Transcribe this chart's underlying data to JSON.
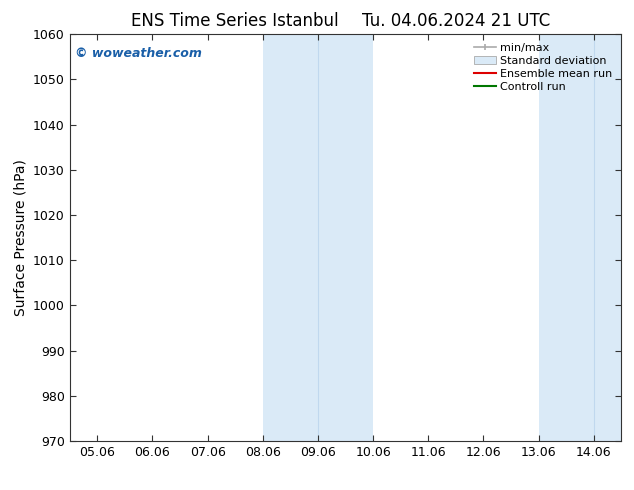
{
  "title_left": "ENS Time Series Istanbul",
  "title_right": "Tu. 04.06.2024 21 UTC",
  "ylabel": "Surface Pressure (hPa)",
  "ylim": [
    970,
    1060
  ],
  "yticks": [
    970,
    980,
    990,
    1000,
    1010,
    1020,
    1030,
    1040,
    1050,
    1060
  ],
  "xlabels": [
    "05.06",
    "06.06",
    "07.06",
    "08.06",
    "09.06",
    "10.06",
    "11.06",
    "12.06",
    "13.06",
    "14.06"
  ],
  "xvalues": [
    0,
    1,
    2,
    3,
    4,
    5,
    6,
    7,
    8,
    9
  ],
  "xlim": [
    -0.5,
    9.5
  ],
  "shaded_bands": [
    {
      "x_start": 3.0,
      "x_end": 5.0,
      "color": "#daeaf7"
    },
    {
      "x_start": 8.0,
      "x_end": 9.5,
      "color": "#daeaf7"
    }
  ],
  "band_inner_lines": [
    {
      "x": 4.0,
      "color": "#c0d8ee"
    },
    {
      "x": 9.0,
      "color": "#c0d8ee"
    }
  ],
  "watermark_text": "© woweather.com",
  "watermark_color": "#1a5fa8",
  "watermark_fontsize": 9,
  "legend_labels": [
    "min/max",
    "Standard deviation",
    "Ensemble mean run",
    "Controll run"
  ],
  "legend_colors_line": [
    "#aaaaaa",
    "#cccccc",
    "#dd0000",
    "#007700"
  ],
  "background_color": "#ffffff",
  "spine_color": "#333333",
  "tick_color": "#333333",
  "title_fontsize": 12,
  "axis_label_fontsize": 10,
  "tick_fontsize": 9,
  "legend_fontsize": 8
}
